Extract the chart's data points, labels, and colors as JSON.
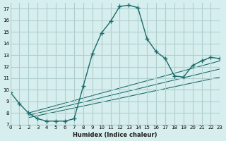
{
  "xlabel": "Humidex (Indice chaleur)",
  "ylabel": "",
  "bg_color": "#d6eeed",
  "grid_color": "#b0cece",
  "line_color": "#1a6b6b",
  "xlim": [
    0,
    23
  ],
  "ylim": [
    7,
    17.5
  ],
  "xticks": [
    0,
    1,
    2,
    3,
    4,
    5,
    6,
    7,
    8,
    9,
    10,
    11,
    12,
    13,
    14,
    15,
    16,
    17,
    18,
    19,
    20,
    21,
    22,
    23
  ],
  "yticks": [
    7,
    8,
    9,
    10,
    11,
    12,
    13,
    14,
    15,
    16,
    17
  ],
  "curve1_x": [
    0,
    1,
    2,
    3,
    4,
    5,
    6,
    7,
    8,
    9,
    10,
    11,
    12,
    13,
    14,
    15,
    16,
    17,
    18,
    19,
    20,
    21,
    22,
    23
  ],
  "curve1_y": [
    9.8,
    8.8,
    8.0,
    7.5,
    7.3,
    7.3,
    7.3,
    7.5,
    10.3,
    13.1,
    14.9,
    15.9,
    17.2,
    17.3,
    17.1,
    14.4,
    13.3,
    12.7,
    11.2,
    11.1,
    12.1,
    12.5,
    12.8,
    12.7
  ],
  "line2_x": [
    2,
    23
  ],
  "line2_y": [
    8.0,
    12.5
  ],
  "line3_x": [
    2,
    23
  ],
  "line3_y": [
    7.8,
    11.8
  ],
  "line4_x": [
    2,
    23
  ],
  "line4_y": [
    7.6,
    11.1
  ]
}
